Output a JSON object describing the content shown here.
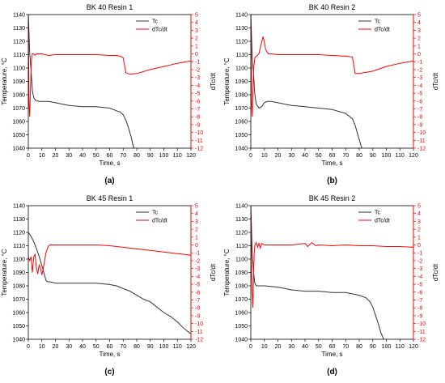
{
  "chart_data": [
    {
      "type": "line",
      "title": "BK 40  Resin 1",
      "panel_label": "(a)",
      "xlabel": "Time, s",
      "ylabel": "Temperature, °C",
      "ylabel_right": "dTc/dt",
      "xlim": [
        0,
        120
      ],
      "ylim": [
        1040,
        1140
      ],
      "ylim_right": [
        -12,
        5
      ],
      "x_ticks": [
        0,
        10,
        20,
        30,
        40,
        50,
        60,
        70,
        80,
        90,
        100,
        110,
        120
      ],
      "y_ticks": [
        1040,
        1050,
        1060,
        1070,
        1080,
        1090,
        1100,
        1110,
        1120,
        1130,
        1140
      ],
      "y_right_ticks": [
        -12,
        -11,
        -10,
        -9,
        -8,
        -7,
        -6,
        -5,
        -4,
        -3,
        -2,
        -1,
        0,
        1,
        2,
        3,
        4,
        5
      ],
      "legend_position": "top-right",
      "series": [
        {
          "name": "Tc",
          "axis": "left",
          "color": "#333333",
          "x": [
            0,
            1,
            2,
            3,
            4,
            5,
            8,
            10,
            15,
            20,
            30,
            40,
            50,
            60,
            65,
            68,
            70,
            72,
            74,
            76,
            77,
            78
          ],
          "y": [
            1140,
            1112,
            1098,
            1083,
            1078,
            1076,
            1075,
            1075,
            1075,
            1074,
            1072,
            1071,
            1071,
            1070,
            1068,
            1067,
            1065,
            1061,
            1055,
            1048,
            1043,
            1040
          ]
        },
        {
          "name": "dTc/dt",
          "axis": "right",
          "color": "#ff0000",
          "x": [
            0,
            0.5,
            1,
            1.5,
            2,
            2.5,
            3,
            4,
            5,
            6,
            8,
            10,
            15,
            20,
            30,
            40,
            50,
            60,
            65,
            68,
            70,
            72,
            75,
            80,
            90,
            100,
            110,
            120
          ],
          "y": [
            5,
            -6,
            -8,
            -5,
            -2,
            -0.5,
            0,
            0,
            -0.2,
            0,
            0,
            0,
            -0.2,
            -0.1,
            -0.1,
            -0.1,
            -0.1,
            -0.2,
            -0.2,
            -0.3,
            -0.5,
            -2.4,
            -2.6,
            -2.5,
            -2.0,
            -1.6,
            -1.2,
            -0.9
          ]
        }
      ]
    },
    {
      "type": "line",
      "title": "BK 40  Resin 2",
      "panel_label": "(b)",
      "xlabel": "Time, s",
      "ylabel": "Temperature, °C",
      "ylabel_right": "dTc/dt",
      "xlim": [
        0,
        120
      ],
      "ylim": [
        1040,
        1140
      ],
      "ylim_right": [
        -12,
        5
      ],
      "x_ticks": [
        0,
        10,
        20,
        30,
        40,
        50,
        60,
        70,
        80,
        90,
        100,
        110,
        120
      ],
      "y_ticks": [
        1040,
        1050,
        1060,
        1070,
        1080,
        1090,
        1100,
        1110,
        1120,
        1130,
        1140
      ],
      "y_right_ticks": [
        -12,
        -11,
        -10,
        -9,
        -8,
        -7,
        -6,
        -5,
        -4,
        -3,
        -2,
        -1,
        0,
        1,
        2,
        3,
        4,
        5
      ],
      "legend_position": "top-right",
      "series": [
        {
          "name": "Tc",
          "axis": "left",
          "color": "#333333",
          "x": [
            0,
            1,
            2,
            3,
            4,
            6,
            8,
            10,
            12,
            15,
            20,
            30,
            40,
            50,
            60,
            70,
            75,
            77,
            79,
            81,
            82
          ],
          "y": [
            1140,
            1108,
            1095,
            1080,
            1073,
            1070,
            1071,
            1074,
            1075,
            1075,
            1074,
            1072,
            1071,
            1070,
            1069,
            1066,
            1062,
            1057,
            1050,
            1043,
            1040
          ]
        },
        {
          "name": "dTc/dt",
          "axis": "right",
          "color": "#ff0000",
          "x": [
            0,
            0.5,
            1,
            1.5,
            2,
            3,
            4,
            6,
            8,
            9,
            10,
            11,
            13,
            15,
            20,
            30,
            40,
            50,
            60,
            70,
            75,
            77,
            80,
            90,
            100,
            110,
            120
          ],
          "y": [
            5,
            -6,
            -8,
            -5,
            -2,
            -0.5,
            -0.3,
            0,
            1.5,
            2.2,
            1.5,
            0.5,
            0,
            0,
            -0.1,
            -0.1,
            -0.1,
            -0.1,
            -0.2,
            -0.3,
            -0.4,
            -2.5,
            -2.5,
            -2.2,
            -1.6,
            -1.2,
            -0.9
          ]
        }
      ]
    },
    {
      "type": "line",
      "title": "BK 45  Resin 1",
      "panel_label": "(c)",
      "xlabel": "Time, s",
      "ylabel": "Temperature, °C",
      "ylabel_right": "dTc/dt",
      "xlim": [
        0,
        120
      ],
      "ylim": [
        1040,
        1140
      ],
      "ylim_right": [
        -12,
        5
      ],
      "x_ticks": [
        0,
        10,
        20,
        30,
        40,
        50,
        60,
        70,
        80,
        90,
        100,
        110,
        120
      ],
      "y_ticks": [
        1040,
        1050,
        1060,
        1070,
        1080,
        1090,
        1100,
        1110,
        1120,
        1130,
        1140
      ],
      "y_right_ticks": [
        -12,
        -11,
        -10,
        -9,
        -8,
        -7,
        -6,
        -5,
        -4,
        -3,
        -2,
        -1,
        0,
        1,
        2,
        3,
        4,
        5
      ],
      "legend_position": "top-right",
      "series": [
        {
          "name": "Tc",
          "axis": "left",
          "color": "#333333",
          "x": [
            0,
            2,
            4,
            6,
            8,
            10,
            12,
            13,
            14,
            16,
            20,
            30,
            40,
            50,
            60,
            65,
            70,
            75,
            80,
            85,
            90,
            95,
            100,
            105,
            110,
            115,
            120
          ],
          "y": [
            1120,
            1117,
            1113,
            1108,
            1102,
            1095,
            1088,
            1084,
            1083,
            1083,
            1082,
            1082,
            1082,
            1082,
            1081,
            1080,
            1078,
            1076,
            1073,
            1070,
            1068,
            1064,
            1060,
            1057,
            1053,
            1048,
            1044
          ]
        },
        {
          "name": "dTc/dt",
          "axis": "right",
          "color": "#ff0000",
          "x": [
            0,
            1,
            2,
            3,
            4,
            5,
            6,
            7,
            8,
            9,
            10,
            11,
            12,
            13,
            14,
            15,
            16,
            18,
            20,
            30,
            40,
            50,
            60,
            70,
            80,
            90,
            100,
            110,
            120
          ],
          "y": [
            -1.5,
            -2,
            -1.5,
            -3.5,
            -1.5,
            -1.2,
            -3,
            -3.7,
            -2.5,
            -3,
            -3.8,
            -3,
            -2,
            -1,
            -0.5,
            -0.1,
            0,
            0,
            0,
            0,
            0,
            0,
            -0.1,
            -0.3,
            -0.5,
            -0.7,
            -0.9,
            -1.1,
            -1.3
          ]
        }
      ]
    },
    {
      "type": "line",
      "title": "BK 45  Resin 2",
      "panel_label": "(d)",
      "xlabel": "Time, s",
      "ylabel": "Temperature, °C",
      "ylabel_right": "dTc/dt",
      "xlim": [
        0,
        120
      ],
      "ylim": [
        1040,
        1140
      ],
      "ylim_right": [
        -12,
        5
      ],
      "x_ticks": [
        0,
        10,
        20,
        30,
        40,
        50,
        60,
        70,
        80,
        90,
        100,
        110,
        120
      ],
      "y_ticks": [
        1040,
        1050,
        1060,
        1070,
        1080,
        1090,
        1100,
        1110,
        1120,
        1130,
        1140
      ],
      "y_right_ticks": [
        -12,
        -11,
        -10,
        -9,
        -8,
        -7,
        -6,
        -5,
        -4,
        -3,
        -2,
        -1,
        0,
        1,
        2,
        3,
        4,
        5
      ],
      "legend_position": "top-right",
      "series": [
        {
          "name": "Tc",
          "axis": "left",
          "color": "#333333",
          "x": [
            0,
            1,
            2,
            3,
            4,
            6,
            10,
            20,
            30,
            40,
            50,
            60,
            70,
            80,
            85,
            88,
            90,
            92,
            94,
            96,
            98
          ],
          "y": [
            1140,
            1105,
            1090,
            1082,
            1080,
            1080,
            1080,
            1079,
            1077,
            1076,
            1076,
            1075,
            1075,
            1073,
            1071,
            1068,
            1064,
            1058,
            1052,
            1045,
            1040
          ]
        },
        {
          "name": "dTc/dt",
          "axis": "right",
          "color": "#ff0000",
          "x": [
            0,
            0.5,
            1,
            1.5,
            2,
            2.5,
            3,
            4,
            5,
            6,
            7,
            8,
            10,
            15,
            20,
            30,
            40,
            42,
            45,
            48,
            50,
            60,
            70,
            80,
            90,
            100,
            110,
            120
          ],
          "y": [
            5,
            -3,
            -6,
            -8,
            -4,
            -1,
            0,
            0.3,
            -0.3,
            0.2,
            -0.4,
            0.2,
            0,
            0,
            0,
            0,
            0.2,
            -0.2,
            0.3,
            -0.1,
            0,
            -0.1,
            0,
            -0.1,
            -0.1,
            -0.2,
            -0.2,
            -0.3
          ]
        }
      ]
    }
  ]
}
